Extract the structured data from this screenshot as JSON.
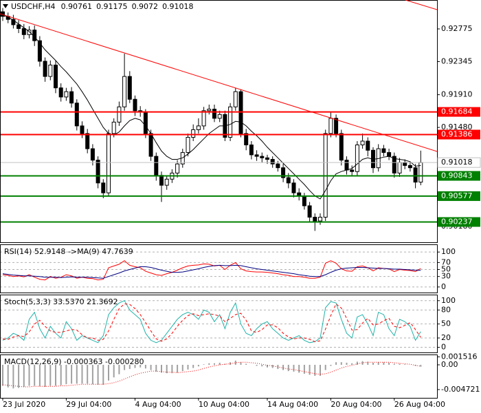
{
  "chart_data": [
    {
      "type": "candlestick",
      "title": "USDCHF,H4",
      "categories": [
        "23 Jul 2020",
        null,
        null,
        null,
        null,
        null,
        null,
        null,
        null,
        null,
        null,
        null,
        "29 Jul 04:00",
        null,
        null,
        null,
        null,
        null,
        null,
        null,
        null,
        null,
        null,
        null,
        null,
        "4 Aug 04:00",
        null,
        null,
        null,
        null,
        null,
        null,
        null,
        null,
        null,
        null,
        null,
        "10 Aug 04:00",
        null,
        null,
        null,
        null,
        null,
        null,
        null,
        null,
        null,
        null,
        null,
        null,
        "14 Aug 04:00",
        null,
        null,
        null,
        null,
        null,
        null,
        null,
        null,
        null,
        null,
        null,
        "20 Aug 04:00",
        null,
        null,
        null,
        null,
        null,
        null,
        null,
        null,
        null,
        null,
        null,
        "26 Aug 04:00",
        null,
        null,
        null,
        null,
        null
      ],
      "open": [
        0.93,
        0.9294,
        0.929,
        0.9283,
        0.9278,
        0.927,
        0.9276,
        0.9262,
        0.9235,
        0.9215,
        0.923,
        0.92,
        0.9188,
        0.9195,
        0.918,
        0.915,
        0.914,
        0.912,
        0.9105,
        0.9075,
        0.9062,
        0.914,
        0.9155,
        0.9175,
        0.9215,
        0.9185,
        0.917,
        0.9168,
        0.914,
        0.911,
        0.9085,
        0.9072,
        0.908,
        0.9088,
        0.91,
        0.9115,
        0.9135,
        0.9145,
        0.915,
        0.917,
        0.9172,
        0.916,
        0.9165,
        0.9135,
        0.9175,
        0.9195,
        0.914,
        0.9125,
        0.9112,
        0.911,
        0.9108,
        0.9106,
        0.91,
        0.9095,
        0.9082,
        0.9075,
        0.9062,
        0.9058,
        0.9045,
        0.903,
        0.9025,
        0.903,
        0.914,
        0.916,
        0.914,
        0.9105,
        0.9092,
        0.909,
        0.9125,
        0.913,
        0.9118,
        0.9095,
        0.912,
        0.9115,
        0.911,
        0.9088,
        0.9102,
        0.9098,
        0.9095,
        0.90761
      ],
      "high": [
        0.9305,
        0.9299,
        0.9296,
        0.9289,
        0.9284,
        0.9281,
        0.9282,
        0.9268,
        0.924,
        0.9236,
        0.9236,
        0.9206,
        0.92,
        0.9201,
        0.9185,
        0.9156,
        0.9146,
        0.9126,
        0.911,
        0.908,
        0.9145,
        0.916,
        0.9182,
        0.9245,
        0.9222,
        0.919,
        0.9176,
        0.9172,
        0.9145,
        0.9115,
        0.909,
        0.9085,
        0.9093,
        0.9105,
        0.912,
        0.914,
        0.9152,
        0.916,
        0.9175,
        0.9178,
        0.9178,
        0.917,
        0.917,
        0.918,
        0.92,
        0.9198,
        0.9146,
        0.913,
        0.9118,
        0.9115,
        0.9112,
        0.911,
        0.9104,
        0.91,
        0.9088,
        0.908,
        0.9068,
        0.9062,
        0.905,
        0.9035,
        0.9035,
        0.9145,
        0.9168,
        0.9165,
        0.9145,
        0.911,
        0.9098,
        0.913,
        0.914,
        0.9135,
        0.9122,
        0.9126,
        0.9125,
        0.912,
        0.9115,
        0.9108,
        0.9106,
        0.9103,
        0.91,
        0.91175
      ],
      "low": [
        0.9288,
        0.9285,
        0.9278,
        0.9272,
        0.9264,
        0.9265,
        0.9255,
        0.9228,
        0.9208,
        0.921,
        0.9193,
        0.9182,
        0.9183,
        0.9174,
        0.9144,
        0.9134,
        0.9114,
        0.9098,
        0.9068,
        0.9055,
        0.9058,
        0.9135,
        0.915,
        0.917,
        0.918,
        0.9163,
        0.9162,
        0.9134,
        0.9104,
        0.9078,
        0.905,
        0.9066,
        0.9075,
        0.9082,
        0.9095,
        0.911,
        0.913,
        0.914,
        0.9145,
        0.9165,
        0.9155,
        0.9155,
        0.913,
        0.913,
        0.917,
        0.9135,
        0.9118,
        0.9106,
        0.9104,
        0.9102,
        0.91,
        0.9095,
        0.909,
        0.9076,
        0.9068,
        0.9056,
        0.9052,
        0.904,
        0.9024,
        0.9012,
        0.902,
        0.9025,
        0.9135,
        0.9135,
        0.9098,
        0.9086,
        0.9084,
        0.9085,
        0.912,
        0.911,
        0.9088,
        0.909,
        0.911,
        0.9105,
        0.9082,
        0.9083,
        0.9093,
        0.909,
        0.9068,
        0.9072
      ],
      "close": [
        0.9294,
        0.929,
        0.9283,
        0.9278,
        0.927,
        0.9276,
        0.9262,
        0.9235,
        0.9215,
        0.923,
        0.92,
        0.9188,
        0.9195,
        0.918,
        0.915,
        0.914,
        0.912,
        0.9105,
        0.9075,
        0.9062,
        0.914,
        0.9155,
        0.9175,
        0.9215,
        0.9185,
        0.917,
        0.9168,
        0.914,
        0.911,
        0.9085,
        0.9072,
        0.908,
        0.9088,
        0.91,
        0.9115,
        0.9135,
        0.9145,
        0.915,
        0.917,
        0.9172,
        0.916,
        0.9165,
        0.9135,
        0.9175,
        0.9195,
        0.914,
        0.9125,
        0.9112,
        0.911,
        0.9108,
        0.9106,
        0.91,
        0.9095,
        0.9082,
        0.9075,
        0.9062,
        0.9058,
        0.9045,
        0.903,
        0.9025,
        0.903,
        0.914,
        0.916,
        0.914,
        0.9105,
        0.9092,
        0.909,
        0.9125,
        0.913,
        0.9118,
        0.9095,
        0.912,
        0.9115,
        0.911,
        0.9088,
        0.9102,
        0.9098,
        0.9095,
        0.90761,
        0.91018
      ],
      "up_color": "#ffffff",
      "down_color": "#000000",
      "wick_color": "#000000",
      "ma": {
        "color": "#000000",
        "values": [
          0.9296,
          0.9293,
          0.9289,
          0.9284,
          0.9279,
          0.9274,
          0.9267,
          0.9259,
          0.925,
          0.9243,
          0.9236,
          0.9228,
          0.9221,
          0.9213,
          0.9205,
          0.9195,
          0.9184,
          0.9172,
          0.916,
          0.9148,
          0.914,
          0.9138,
          0.9142,
          0.915,
          0.9157,
          0.916,
          0.9158,
          0.915,
          0.914,
          0.9128,
          0.9117,
          0.911,
          0.9106,
          0.9106,
          0.9108,
          0.9113,
          0.9119,
          0.9126,
          0.9133,
          0.914,
          0.9145,
          0.915,
          0.915,
          0.9152,
          0.9156,
          0.9155,
          0.915,
          0.9143,
          0.9137,
          0.913,
          0.9122,
          0.9115,
          0.9108,
          0.9101,
          0.9094,
          0.9087,
          0.908,
          0.9073,
          0.9065,
          0.9058,
          0.9054,
          0.9065,
          0.9078,
          0.9087,
          0.909,
          0.9092,
          0.9094,
          0.91,
          0.9106,
          0.9108,
          0.9106,
          0.9107,
          0.9109,
          0.911,
          0.9107,
          0.9106,
          0.9105,
          0.9103,
          0.9097,
          0.9098
        ]
      },
      "levels": [
        {
          "value": 0.91684,
          "color": "#ff0000"
        },
        {
          "value": 0.91386,
          "color": "#ff0000"
        },
        {
          "value": 0.90843,
          "color": "#008000"
        },
        {
          "value": 0.90577,
          "color": "#008000"
        },
        {
          "value": 0.90237,
          "color": "#008000"
        }
      ],
      "ylim": [
        0.8997,
        0.93155
      ],
      "yticks": [
        0.92775,
        0.92345,
        {
          "value": 0.9191,
          "label": "0.91910"
        },
        {
          "value": 0.9148,
          "label": "0.91480"
        },
        {
          "value": 0.9018,
          "label": "0.90180"
        }
      ]
    },
    {
      "type": "line",
      "label": "RSI(14) 52.9148 ->MA(9) 47.7639",
      "series": [
        {
          "color": "#ff0000",
          "style": "solid",
          "values": [
            35,
            33,
            30,
            32,
            29,
            35,
            28,
            22,
            20,
            30,
            25,
            28,
            35,
            32,
            25,
            28,
            25,
            24,
            20,
            22,
            55,
            60,
            65,
            75,
            62,
            58,
            55,
            45,
            40,
            35,
            33,
            38,
            42,
            48,
            55,
            60,
            62,
            63,
            66,
            65,
            60,
            62,
            50,
            62,
            70,
            52,
            46,
            44,
            43,
            43,
            42,
            40,
            38,
            35,
            33,
            30,
            30,
            28,
            25,
            25,
            28,
            68,
            75,
            68,
            52,
            46,
            45,
            58,
            60,
            55,
            46,
            55,
            53,
            52,
            44,
            50,
            48,
            47,
            44,
            52.9148
          ]
        },
        {
          "color": "#000080",
          "style": "solid",
          "values": [
            38,
            36,
            34,
            33,
            32,
            32,
            31,
            30,
            28,
            28,
            28,
            27,
            28,
            29,
            28,
            28,
            28,
            27,
            26,
            25,
            30,
            35,
            40,
            46,
            50,
            54,
            58,
            58,
            56,
            52,
            48,
            45,
            42,
            42,
            43,
            46,
            49,
            52,
            56,
            59,
            61,
            62,
            61,
            61,
            62,
            61,
            58,
            55,
            52,
            50,
            48,
            46,
            44,
            42,
            40,
            38,
            35,
            33,
            31,
            30,
            30,
            35,
            42,
            48,
            52,
            54,
            55,
            56,
            56,
            55,
            54,
            53,
            53,
            52,
            51,
            51,
            50,
            49,
            48,
            47.7639
          ]
        }
      ],
      "ylim": [
        -16,
        122
      ],
      "yticks": [
        100,
        70,
        50,
        30,
        0
      ],
      "grid": true
    },
    {
      "type": "line",
      "label": "Stoch(5,3,3) 33.5370 21.3692",
      "series": [
        {
          "color": "#20b2aa",
          "style": "solid",
          "values": [
            15,
            20,
            30,
            25,
            15,
            60,
            75,
            40,
            20,
            45,
            30,
            20,
            55,
            40,
            15,
            25,
            20,
            15,
            10,
            25,
            70,
            85,
            95,
            100,
            80,
            70,
            60,
            30,
            15,
            10,
            15,
            30,
            45,
            60,
            70,
            75,
            70,
            60,
            80,
            75,
            55,
            70,
            40,
            75,
            95,
            50,
            30,
            25,
            40,
            50,
            55,
            40,
            30,
            20,
            15,
            20,
            25,
            15,
            10,
            12,
            20,
            85,
            98,
            95,
            60,
            30,
            20,
            65,
            70,
            50,
            25,
            75,
            70,
            40,
            25,
            60,
            55,
            45,
            15,
            33.537
          ]
        },
        {
          "color": "#ff0000",
          "style": "dashed",
          "values": [
            18,
            17,
            22,
            25,
            23,
            33,
            50,
            58,
            45,
            35,
            32,
            32,
            35,
            38,
            37,
            27,
            20,
            20,
            15,
            17,
            35,
            60,
            83,
            93,
            92,
            83,
            70,
            53,
            35,
            18,
            13,
            18,
            30,
            45,
            58,
            68,
            72,
            68,
            70,
            72,
            70,
            67,
            55,
            62,
            70,
            73,
            58,
            35,
            32,
            38,
            48,
            48,
            42,
            30,
            22,
            18,
            20,
            20,
            17,
            12,
            14,
            39,
            68,
            93,
            84,
            62,
            37,
            38,
            52,
            62,
            48,
            50,
            57,
            62,
            45,
            42,
            47,
            53,
            38,
            21.3692
          ]
        }
      ],
      "ylim": [
        -11,
        113
      ],
      "yticks": [
        100,
        80,
        50,
        20,
        0
      ],
      "grid": true
    },
    {
      "type": "macd",
      "label": "MACD(12,26,9) -0.000363 -0.000280",
      "histogram": {
        "color": "#a0a0a0",
        "values": [
          -0.004,
          -0.0043,
          -0.0045,
          -0.0044,
          -0.0042,
          -0.004,
          -0.004,
          -0.0041,
          -0.0042,
          -0.004,
          -0.004,
          -0.0039,
          -0.0037,
          -0.0036,
          -0.0036,
          -0.0036,
          -0.0036,
          -0.0037,
          -0.0038,
          -0.0038,
          -0.003,
          -0.0024,
          -0.0018,
          -0.001,
          -0.0008,
          -0.0006,
          -0.0005,
          -0.0007,
          -0.001,
          -0.0013,
          -0.0015,
          -0.0016,
          -0.0016,
          -0.0015,
          -0.0012,
          -0.0009,
          -0.0006,
          -0.0003,
          0.0001,
          0.0003,
          0.0003,
          0.0004,
          0.0002,
          0.0005,
          0.0008,
          0.0005,
          0.0002,
          0.0,
          -0.0002,
          -0.0003,
          -0.0005,
          -0.0006,
          -0.0008,
          -0.001,
          -0.0012,
          -0.0013,
          -0.0015,
          -0.0017,
          -0.0019,
          -0.0021,
          -0.0021,
          -0.001,
          -0.0002,
          0.0005,
          0.0005,
          0.0004,
          0.0003,
          0.0006,
          0.0007,
          0.0006,
          0.0004,
          0.0005,
          0.0005,
          0.0004,
          0.0002,
          0.0002,
          0.0001,
          0.0,
          -0.0002,
          -0.000363
        ]
      },
      "series": [
        {
          "color": "#ff0000",
          "style": "dotted",
          "values": [
            -0.0038,
            -0.0039,
            -0.004,
            -0.0041,
            -0.0042,
            -0.0042,
            -0.0041,
            -0.0041,
            -0.0041,
            -0.0041,
            -0.0041,
            -0.004,
            -0.004,
            -0.0039,
            -0.0038,
            -0.0037,
            -0.0037,
            -0.0037,
            -0.0037,
            -0.0037,
            -0.0036,
            -0.0034,
            -0.0031,
            -0.0027,
            -0.0023,
            -0.0019,
            -0.0016,
            -0.0014,
            -0.0012,
            -0.0012,
            -0.0013,
            -0.0014,
            -0.0014,
            -0.0015,
            -0.0014,
            -0.0013,
            -0.0012,
            -0.001,
            -0.0007,
            -0.0004,
            -0.0002,
            0.0,
            0.0001,
            0.0002,
            0.0004,
            0.0005,
            0.0005,
            0.0004,
            0.0003,
            0.0001,
            -0.0001,
            -0.0002,
            -0.0004,
            -0.0006,
            -0.0008,
            -0.0009,
            -0.0011,
            -0.0013,
            -0.0015,
            -0.0017,
            -0.0018,
            -0.0017,
            -0.0014,
            -0.001,
            -0.0006,
            -0.0003,
            -0.0001,
            0.0002,
            0.0004,
            0.0005,
            0.0005,
            0.0005,
            0.0005,
            0.0005,
            0.0004,
            0.0003,
            0.0002,
            0.0001,
            -0.0001,
            -0.00028
          ]
        }
      ],
      "ylim": [
        -0.0063,
        0.00197
      ],
      "yticks": [
        0.001516,
        {
          "value": 0,
          "label": "0.00"
        },
        -0.004721
      ],
      "grid": false
    }
  ]
}
